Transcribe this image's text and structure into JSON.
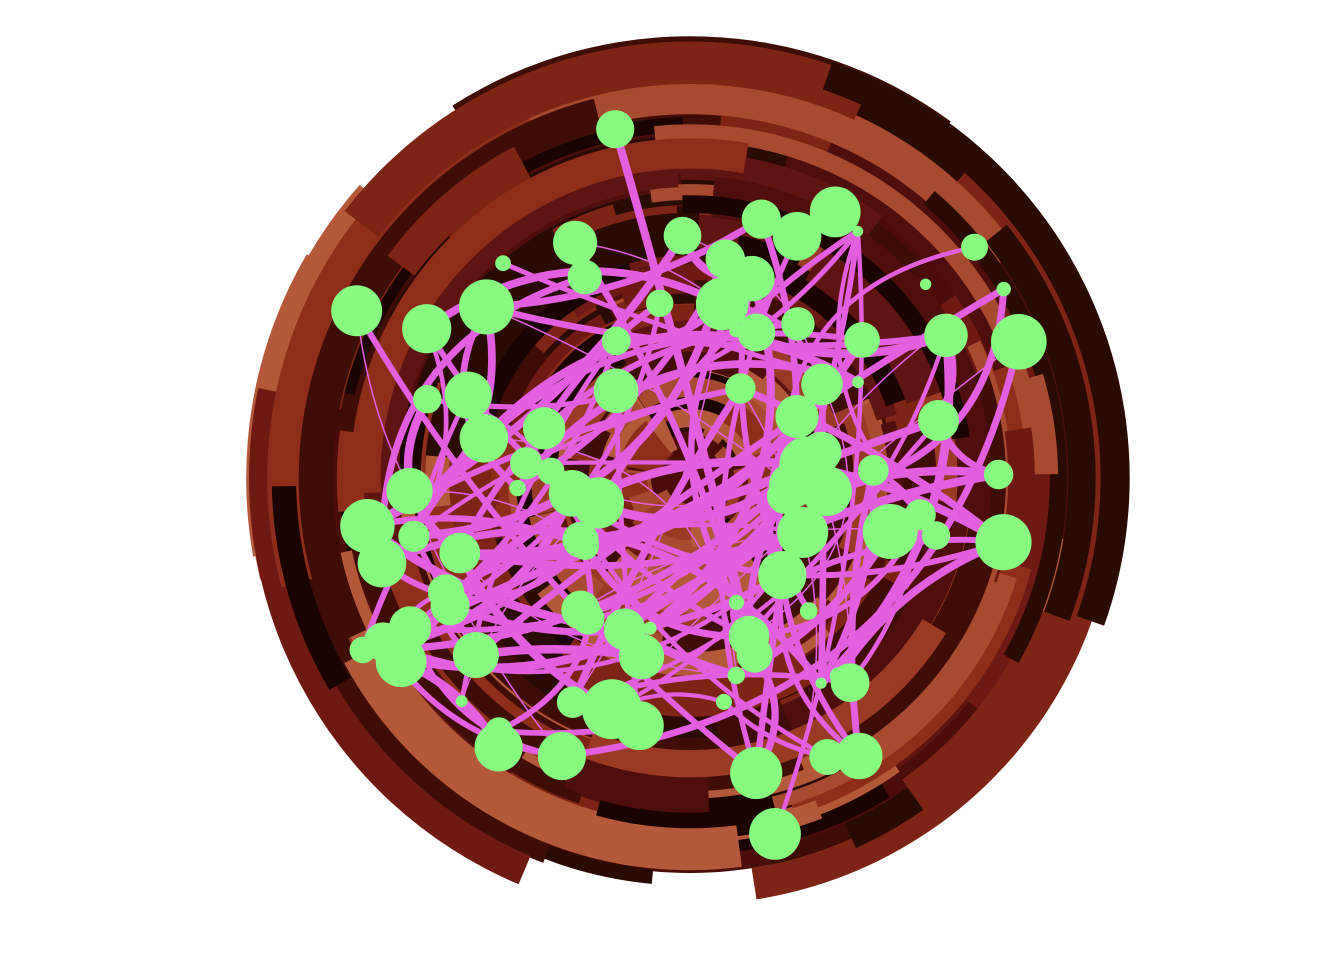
{
  "artwork": {
    "background_color": "#ffffff",
    "palette": {
      "ring_colors": [
        "#1a0300",
        "#2a0b04",
        "#3d0d06",
        "#4e0e0b",
        "#5e1410",
        "#6e1a12",
        "#7e2415",
        "#8e2e1a",
        "#9a3a24",
        "#a84a30",
        "#b4583a"
      ],
      "edge_color": "#e35fdf",
      "node_color": "#86fb80"
    },
    "ring_arc_count": 340,
    "edge_count": 130,
    "node_count": 95
  }
}
